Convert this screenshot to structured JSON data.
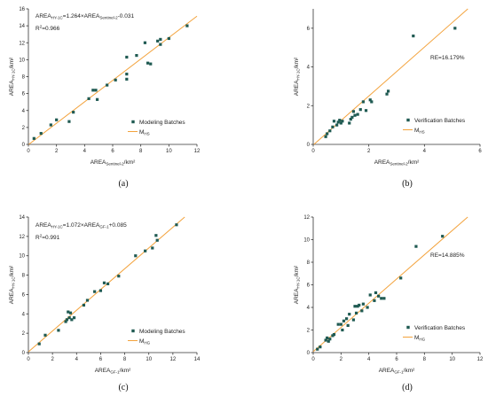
{
  "colors": {
    "point": "#1f5a52",
    "line": "#f3a23b",
    "axis": "#333333"
  },
  "chart_data": [
    {
      "type": "scatter",
      "panel_label": "(a)",
      "xlabel": {
        "main": "AREA",
        "sub": "Sentinel-2",
        "unit": "/km²"
      },
      "ylabel": {
        "main": "AREA",
        "sub": "HY-1C",
        "unit": "/km²"
      },
      "xlim": [
        0,
        12
      ],
      "ylim": [
        0,
        16
      ],
      "xticks": [
        0,
        2,
        4,
        6,
        8,
        10,
        12
      ],
      "yticks": [
        0,
        2,
        4,
        6,
        8,
        10,
        12,
        14,
        16
      ],
      "annotations": [
        {
          "id": "eq",
          "parts": [
            "AREA",
            "HY-1C",
            "=1.264×AREA",
            "Sentinel-2",
            "-0.031"
          ]
        },
        {
          "id": "r2",
          "parts": [
            "R",
            "2",
            "=0.966"
          ]
        }
      ],
      "legend": {
        "placement": "bottom-right",
        "points_label": "Modeling Batches",
        "line_label": "M",
        "line_sub": "HS"
      },
      "line": {
        "slope": 1.264,
        "intercept": -0.031
      },
      "points": [
        [
          0.4,
          0.7
        ],
        [
          0.9,
          1.3
        ],
        [
          1.6,
          2.3
        ],
        [
          2.0,
          2.9
        ],
        [
          2.9,
          2.7
        ],
        [
          3.2,
          3.8
        ],
        [
          4.3,
          5.4
        ],
        [
          4.6,
          6.4
        ],
        [
          4.8,
          6.4
        ],
        [
          4.9,
          5.3
        ],
        [
          5.6,
          7.0
        ],
        [
          6.2,
          7.6
        ],
        [
          7.0,
          7.7
        ],
        [
          7.0,
          8.3
        ],
        [
          7.0,
          10.3
        ],
        [
          7.7,
          10.5
        ],
        [
          8.3,
          12.0
        ],
        [
          8.5,
          9.6
        ],
        [
          8.7,
          9.5
        ],
        [
          9.2,
          12.2
        ],
        [
          9.4,
          11.8
        ],
        [
          9.4,
          12.4
        ],
        [
          10.0,
          12.5
        ],
        [
          11.3,
          14.0
        ]
      ]
    },
    {
      "type": "scatter",
      "panel_label": "(b)",
      "xlabel": {
        "main": "AREA",
        "sub": "Sentinel-2",
        "unit": "/km²"
      },
      "ylabel": {
        "main": "AREA",
        "sub": "HY-1C",
        "unit": "/km²"
      },
      "xlim": [
        0,
        6
      ],
      "ylim": [
        0,
        7
      ],
      "xticks": [
        0,
        2,
        4,
        6
      ],
      "yticks": [
        0,
        2,
        4,
        6
      ],
      "annotations": [
        {
          "id": "re",
          "parts": [
            "RE=16.179%"
          ]
        }
      ],
      "legend": {
        "placement": "bottom-right",
        "points_label": "Verification Batches",
        "line_label": "M",
        "line_sub": "HS"
      },
      "line": {
        "slope": 1.264,
        "intercept": -0.031
      },
      "points": [
        [
          0.45,
          0.4
        ],
        [
          0.5,
          0.55
        ],
        [
          0.6,
          0.7
        ],
        [
          0.7,
          0.9
        ],
        [
          0.75,
          1.2
        ],
        [
          0.85,
          1.0
        ],
        [
          0.9,
          1.15
        ],
        [
          0.95,
          1.25
        ],
        [
          1.0,
          1.1
        ],
        [
          1.05,
          1.2
        ],
        [
          1.3,
          1.1
        ],
        [
          1.35,
          1.3
        ],
        [
          1.4,
          1.4
        ],
        [
          1.45,
          1.7
        ],
        [
          1.5,
          1.5
        ],
        [
          1.6,
          1.55
        ],
        [
          1.7,
          1.8
        ],
        [
          1.8,
          2.2
        ],
        [
          1.9,
          1.75
        ],
        [
          2.05,
          2.3
        ],
        [
          2.1,
          2.2
        ],
        [
          2.65,
          2.6
        ],
        [
          2.7,
          2.75
        ],
        [
          3.6,
          5.6
        ],
        [
          5.1,
          6.0
        ]
      ]
    },
    {
      "type": "scatter",
      "panel_label": "(c)",
      "xlabel": {
        "main": "AREA",
        "sub": "GF-1",
        "unit": "/km²"
      },
      "ylabel": {
        "main": "AREA",
        "sub": "HY-1C",
        "unit": "/km²"
      },
      "xlim": [
        0,
        14
      ],
      "ylim": [
        0,
        14
      ],
      "xticks": [
        0,
        2,
        4,
        6,
        8,
        10,
        12,
        14
      ],
      "yticks": [
        0,
        2,
        4,
        6,
        8,
        10,
        12,
        14
      ],
      "annotations": [
        {
          "id": "eq",
          "parts": [
            "AREA",
            "HY-1C",
            "=1.072×AREA",
            "GF-1",
            "+0.085"
          ]
        },
        {
          "id": "r2",
          "parts": [
            "R",
            "2",
            "=0.991"
          ]
        }
      ],
      "legend": {
        "placement": "bottom-right",
        "points_label": "Modeling Batches",
        "line_label": "M",
        "line_sub": "HG"
      },
      "line": {
        "slope": 1.072,
        "intercept": 0.085
      },
      "points": [
        [
          0.9,
          0.9
        ],
        [
          1.4,
          1.8
        ],
        [
          2.5,
          2.3
        ],
        [
          3.1,
          3.2
        ],
        [
          3.2,
          3.4
        ],
        [
          3.3,
          4.2
        ],
        [
          3.4,
          3.6
        ],
        [
          3.5,
          4.1
        ],
        [
          3.6,
          3.4
        ],
        [
          3.8,
          3.6
        ],
        [
          4.6,
          4.9
        ],
        [
          4.9,
          5.4
        ],
        [
          5.5,
          6.3
        ],
        [
          6.0,
          6.4
        ],
        [
          6.3,
          7.2
        ],
        [
          6.6,
          7.1
        ],
        [
          7.5,
          7.9
        ],
        [
          8.9,
          10.0
        ],
        [
          9.7,
          10.5
        ],
        [
          10.3,
          10.8
        ],
        [
          10.6,
          12.1
        ],
        [
          10.7,
          11.6
        ],
        [
          12.3,
          13.2
        ]
      ]
    },
    {
      "type": "scatter",
      "panel_label": "(d)",
      "xlabel": {
        "main": "AREA",
        "sub": "GF-1",
        "unit": "/km²"
      },
      "ylabel": {
        "main": "AREA",
        "sub": "HY-1C",
        "unit": "/km²"
      },
      "xlim": [
        0,
        12
      ],
      "ylim": [
        0,
        12
      ],
      "xticks": [
        0,
        2,
        4,
        6,
        8,
        10,
        12
      ],
      "yticks": [
        0,
        2,
        4,
        6,
        8,
        10,
        12
      ],
      "annotations": [
        {
          "id": "re",
          "parts": [
            "RE=14.885%"
          ]
        }
      ],
      "legend": {
        "placement": "bottom-right",
        "points_label": "Verification Batches",
        "line_label": "M",
        "line_sub": "HG"
      },
      "line": {
        "slope": 1.072,
        "intercept": 0.085
      },
      "points": [
        [
          0.3,
          0.3
        ],
        [
          0.5,
          0.5
        ],
        [
          0.9,
          1.1
        ],
        [
          1.0,
          1.3
        ],
        [
          1.1,
          1.0
        ],
        [
          1.2,
          1.2
        ],
        [
          1.4,
          1.5
        ],
        [
          1.5,
          1.6
        ],
        [
          1.8,
          2.5
        ],
        [
          2.0,
          2.5
        ],
        [
          2.1,
          2.0
        ],
        [
          2.2,
          2.8
        ],
        [
          2.4,
          3.0
        ],
        [
          2.5,
          2.4
        ],
        [
          2.6,
          3.4
        ],
        [
          2.9,
          2.9
        ],
        [
          3.0,
          4.1
        ],
        [
          3.1,
          3.5
        ],
        [
          3.2,
          4.1
        ],
        [
          3.3,
          4.2
        ],
        [
          3.5,
          3.7
        ],
        [
          3.6,
          4.3
        ],
        [
          3.9,
          4.0
        ],
        [
          4.1,
          5.1
        ],
        [
          4.4,
          4.6
        ],
        [
          4.5,
          5.3
        ],
        [
          4.7,
          5.0
        ],
        [
          4.9,
          4.8
        ],
        [
          5.1,
          4.8
        ],
        [
          6.3,
          6.6
        ],
        [
          7.4,
          9.4
        ],
        [
          9.3,
          10.3
        ]
      ]
    }
  ]
}
